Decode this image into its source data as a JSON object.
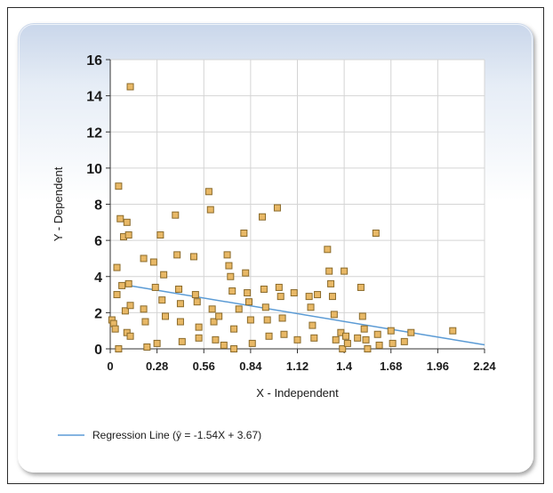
{
  "chart_data": {
    "type": "scatter",
    "xlabel": "X - Independent",
    "ylabel": "Y - Dependent",
    "xlim": [
      0,
      2.24
    ],
    "ylim": [
      0,
      16
    ],
    "xticks": [
      "0",
      "0.28",
      "0.56",
      "0.84",
      "1.12",
      "1.4",
      "1.68",
      "1.96",
      "2.24"
    ],
    "yticks": [
      "0",
      "2",
      "4",
      "6",
      "8",
      "10",
      "12",
      "14",
      "16"
    ],
    "grid": true,
    "legend_position": "bottom-left",
    "marker_color": "#e8b866",
    "marker_edge_color": "#8a6a2a",
    "line_color": "#5b9bd5",
    "series": [
      {
        "kind": "points",
        "points": [
          [
            0.01,
            1.6
          ],
          [
            0.02,
            1.4
          ],
          [
            0.03,
            1.1
          ],
          [
            0.04,
            4.5
          ],
          [
            0.04,
            3.0
          ],
          [
            0.05,
            9.0
          ],
          [
            0.05,
            0.0
          ],
          [
            0.06,
            7.2
          ],
          [
            0.07,
            3.5
          ],
          [
            0.08,
            6.2
          ],
          [
            0.09,
            2.1
          ],
          [
            0.1,
            7.0
          ],
          [
            0.1,
            0.9
          ],
          [
            0.11,
            6.3
          ],
          [
            0.11,
            3.6
          ],
          [
            0.12,
            14.5
          ],
          [
            0.12,
            2.4
          ],
          [
            0.12,
            0.7
          ],
          [
            0.2,
            5.0
          ],
          [
            0.2,
            2.2
          ],
          [
            0.21,
            1.5
          ],
          [
            0.22,
            0.1
          ],
          [
            0.26,
            4.8
          ],
          [
            0.27,
            3.4
          ],
          [
            0.28,
            0.3
          ],
          [
            0.3,
            6.3
          ],
          [
            0.31,
            2.7
          ],
          [
            0.32,
            4.1
          ],
          [
            0.33,
            1.8
          ],
          [
            0.39,
            7.4
          ],
          [
            0.4,
            5.2
          ],
          [
            0.41,
            3.3
          ],
          [
            0.42,
            2.5
          ],
          [
            0.42,
            1.5
          ],
          [
            0.43,
            0.4
          ],
          [
            0.5,
            5.1
          ],
          [
            0.51,
            3.0
          ],
          [
            0.52,
            2.6
          ],
          [
            0.53,
            1.2
          ],
          [
            0.53,
            0.6
          ],
          [
            0.59,
            8.7
          ],
          [
            0.6,
            7.7
          ],
          [
            0.61,
            2.2
          ],
          [
            0.62,
            1.5
          ],
          [
            0.63,
            0.5
          ],
          [
            0.65,
            1.8
          ],
          [
            0.68,
            0.2
          ],
          [
            0.7,
            5.2
          ],
          [
            0.71,
            4.6
          ],
          [
            0.72,
            4.0
          ],
          [
            0.73,
            3.2
          ],
          [
            0.74,
            1.1
          ],
          [
            0.74,
            0.0
          ],
          [
            0.77,
            2.2
          ],
          [
            0.8,
            6.4
          ],
          [
            0.81,
            4.2
          ],
          [
            0.82,
            3.1
          ],
          [
            0.83,
            2.6
          ],
          [
            0.84,
            1.6
          ],
          [
            0.85,
            0.3
          ],
          [
            0.91,
            7.3
          ],
          [
            0.92,
            3.3
          ],
          [
            0.93,
            2.3
          ],
          [
            0.94,
            1.6
          ],
          [
            0.95,
            0.7
          ],
          [
            1.0,
            7.8
          ],
          [
            1.01,
            3.4
          ],
          [
            1.02,
            2.9
          ],
          [
            1.03,
            1.7
          ],
          [
            1.04,
            0.8
          ],
          [
            1.1,
            3.1
          ],
          [
            1.12,
            0.5
          ],
          [
            1.19,
            2.9
          ],
          [
            1.2,
            2.3
          ],
          [
            1.21,
            1.3
          ],
          [
            1.22,
            0.6
          ],
          [
            1.24,
            3.0
          ],
          [
            1.3,
            5.5
          ],
          [
            1.31,
            4.3
          ],
          [
            1.32,
            3.6
          ],
          [
            1.33,
            2.9
          ],
          [
            1.34,
            1.9
          ],
          [
            1.35,
            0.5
          ],
          [
            1.38,
            0.9
          ],
          [
            1.39,
            0.0
          ],
          [
            1.4,
            4.3
          ],
          [
            1.41,
            0.7
          ],
          [
            1.42,
            0.3
          ],
          [
            1.48,
            0.6
          ],
          [
            1.5,
            3.4
          ],
          [
            1.51,
            1.8
          ],
          [
            1.52,
            1.1
          ],
          [
            1.53,
            0.5
          ],
          [
            1.54,
            0.0
          ],
          [
            1.59,
            6.4
          ],
          [
            1.6,
            0.8
          ],
          [
            1.61,
            0.2
          ],
          [
            1.68,
            1.0
          ],
          [
            1.69,
            0.3
          ],
          [
            1.76,
            0.4
          ],
          [
            1.8,
            0.9
          ],
          [
            2.05,
            1.0
          ]
        ]
      },
      {
        "kind": "line",
        "name": "Regression Line (ŷ = -1.54X + 3.67)",
        "x": [
          0.1,
          2.24
        ],
        "y": [
          3.52,
          0.22
        ]
      }
    ]
  }
}
